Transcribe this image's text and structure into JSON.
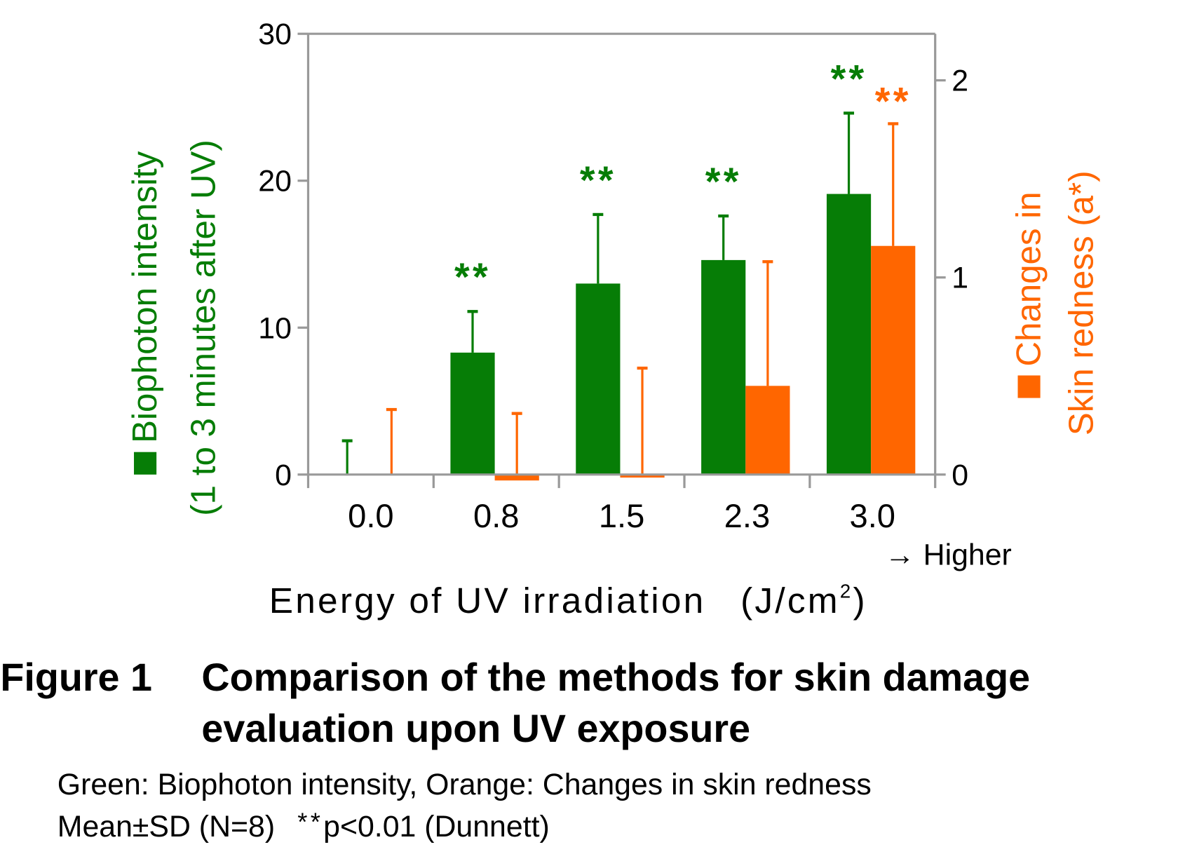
{
  "colors": {
    "green": "#067d06",
    "orange": "#ff6600",
    "axis": "#999999"
  },
  "chart_data": {
    "type": "bar",
    "categories": [
      "0.0",
      "0.8",
      "1.5",
      "2.3",
      "3.0"
    ],
    "xlabel_main": "Energy of UV irradiation",
    "xlabel_unit_pre": "(J/cm",
    "xlabel_unit_sup": "2",
    "xlabel_unit_post": ")",
    "x_annotation": "→ Higher",
    "left_axis": {
      "label_line1": "Biophoton intensity",
      "label_line2": "(1 to 3 minutes after UV)",
      "ylim": [
        0,
        30
      ],
      "ticks": [
        "0",
        "10",
        "20",
        "30"
      ]
    },
    "right_axis": {
      "label_line1": "Changes in",
      "label_line2": "Skin redness (a*)",
      "ylim": [
        0,
        2.25
      ],
      "ticks": [
        "0",
        "1",
        "2"
      ]
    },
    "series": [
      {
        "name": "Biophoton intensity",
        "axis": "left",
        "color": "#067d06",
        "values": [
          0,
          8.3,
          13.0,
          14.6,
          19.1
        ],
        "sd_upper": [
          2.3,
          11.1,
          17.7,
          17.6,
          24.6
        ],
        "significance": [
          "",
          "**",
          "**",
          "**",
          "**"
        ]
      },
      {
        "name": "Changes in skin redness",
        "axis": "right",
        "color": "#ff6600",
        "values": [
          0,
          -0.03,
          -0.01,
          0.45,
          1.16
        ],
        "sd_upper": [
          0.33,
          0.31,
          0.54,
          1.08,
          1.78
        ],
        "significance": [
          "",
          "",
          "",
          "",
          "**"
        ]
      }
    ],
    "grid": false
  },
  "caption": {
    "figure_label": "Figure 1",
    "title_line1": "Comparison of the methods for skin damage",
    "title_line2": "evaluation upon UV exposure",
    "note_line1": "Green: Biophoton intensity, Orange: Changes in skin redness",
    "note_line2_a": "Mean±SD (N=8)",
    "note_line2_b": "**",
    "note_line2_c": "p<0.01 (Dunnett)"
  }
}
